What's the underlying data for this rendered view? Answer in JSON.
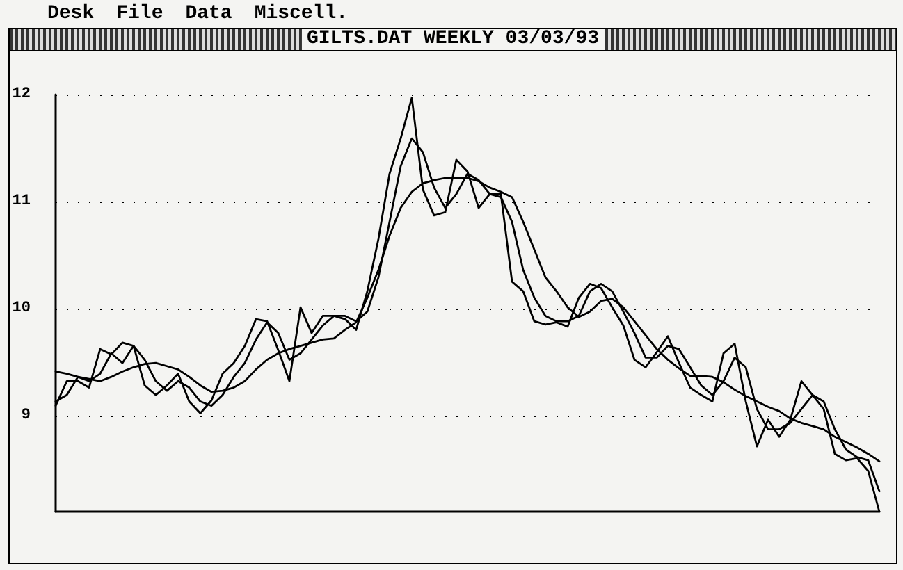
{
  "chart_data": {
    "type": "line",
    "title": "GILTS.DAT WEEKLY 03/03/93",
    "annotations": [
      "Desk",
      "File",
      "Data",
      "Miscell."
    ],
    "categories": [
      null,
      null,
      null,
      null,
      null,
      null,
      null,
      null,
      null,
      null,
      null,
      null,
      null,
      null,
      null,
      null,
      null,
      null,
      null,
      null,
      null,
      null,
      null,
      null,
      null,
      null,
      null,
      null,
      null,
      null,
      null,
      null,
      null,
      null,
      null,
      null,
      null,
      null,
      null,
      null,
      null,
      null,
      null,
      null,
      null,
      null,
      null,
      null,
      null,
      null,
      null,
      null,
      null,
      null,
      null,
      null,
      null,
      null,
      null,
      null,
      null,
      null,
      null,
      null,
      null,
      null,
      null,
      null,
      null,
      null,
      null,
      null,
      null,
      null,
      null
    ],
    "series": [
      {
        "color": "#000000",
        "values": [
          9.09,
          9.32,
          9.32,
          9.26,
          9.62,
          9.57,
          9.68,
          9.65,
          9.28,
          9.19,
          9.28,
          9.39,
          9.13,
          9.02,
          9.14,
          9.39,
          9.49,
          9.65,
          9.9,
          9.88,
          9.61,
          9.32,
          10.01,
          9.77,
          9.93,
          9.93,
          9.9,
          9.8,
          10.16,
          10.65,
          11.26,
          11.59,
          11.97,
          11.11,
          10.87,
          10.9,
          11.39,
          11.28,
          10.94,
          11.07,
          11.07,
          10.25,
          10.16,
          9.88,
          9.85,
          9.87,
          9.83,
          10.1,
          10.23,
          10.19,
          10.01,
          9.84,
          9.52,
          9.45,
          9.59,
          9.74,
          9.49,
          9.26,
          9.19,
          9.13,
          9.58,
          9.67,
          9.13,
          8.71,
          8.96,
          8.8,
          8.96,
          9.32,
          9.19,
          9.06,
          8.64,
          8.58,
          8.6,
          8.48,
          8.1
        ]
      },
      {
        "color": "#000000",
        "values": [
          9.13,
          9.19,
          9.36,
          9.32,
          9.39,
          9.58,
          9.49,
          9.65,
          9.52,
          9.32,
          9.23,
          9.32,
          9.26,
          9.13,
          9.09,
          9.19,
          9.36,
          9.49,
          9.71,
          9.87,
          9.77,
          9.52,
          9.58,
          9.71,
          9.84,
          9.93,
          9.93,
          9.88,
          9.97,
          10.29,
          10.81,
          11.33,
          11.59,
          11.46,
          11.13,
          10.94,
          11.07,
          11.26,
          11.2,
          11.07,
          11.04,
          10.81,
          10.36,
          10.1,
          9.93,
          9.88,
          9.88,
          9.93,
          10.16,
          10.23,
          10.16,
          9.97,
          9.77,
          9.54,
          9.54,
          9.65,
          9.62,
          9.45,
          9.28,
          9.19,
          9.32,
          9.54,
          9.45,
          9.06,
          8.87,
          8.87,
          8.93,
          9.06,
          9.19,
          9.13,
          8.87,
          8.68,
          8.61,
          8.58,
          8.29
        ]
      },
      {
        "color": "#000000",
        "values": [
          9.41,
          9.39,
          9.36,
          9.34,
          9.32,
          9.36,
          9.41,
          9.45,
          9.48,
          9.49,
          9.46,
          9.43,
          9.36,
          9.28,
          9.22,
          9.23,
          9.26,
          9.32,
          9.43,
          9.52,
          9.58,
          9.62,
          9.65,
          9.68,
          9.71,
          9.72,
          9.8,
          9.87,
          10.1,
          10.36,
          10.68,
          10.94,
          11.09,
          11.17,
          11.2,
          11.22,
          11.22,
          11.22,
          11.19,
          11.13,
          11.09,
          11.04,
          10.81,
          10.55,
          10.29,
          10.16,
          10.01,
          9.92,
          9.97,
          10.07,
          10.09,
          10.01,
          9.88,
          9.75,
          9.62,
          9.52,
          9.44,
          9.37,
          9.37,
          9.36,
          9.31,
          9.24,
          9.18,
          9.13,
          9.08,
          9.04,
          8.97,
          8.93,
          8.9,
          8.87,
          8.8,
          8.75,
          8.7,
          8.64,
          8.57
        ]
      }
    ],
    "ylim": [
      8.1,
      12
    ],
    "yticks": [
      9,
      10,
      11,
      12
    ],
    "grid": "y",
    "tick_labels": "y",
    "line_style": "solid"
  }
}
